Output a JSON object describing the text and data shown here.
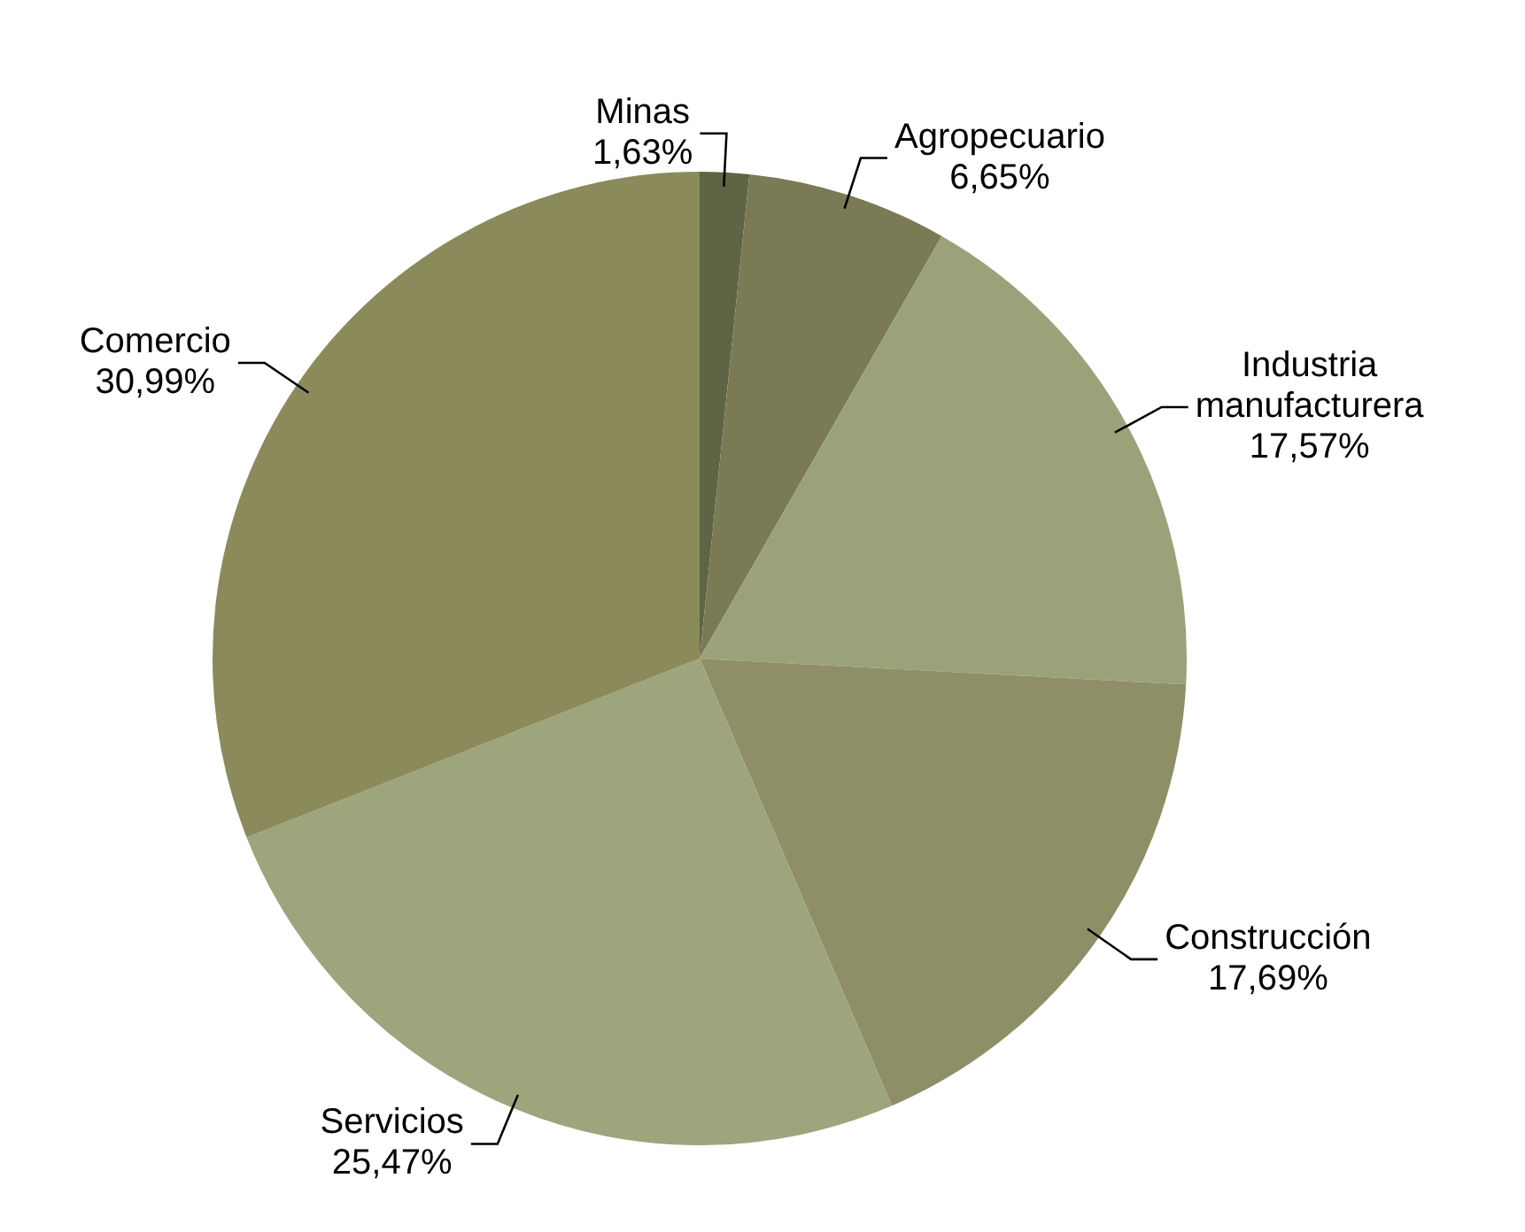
{
  "chart_data": {
    "type": "pie",
    "categories": [
      "Minas",
      "Agropecuario",
      "Industria manufacturera",
      "Construcción",
      "Servicios",
      "Comercio"
    ],
    "values": [
      1.63,
      6.65,
      17.57,
      17.69,
      25.47,
      30.99
    ],
    "value_labels": [
      "1,63%",
      "6,65%",
      "17,57%",
      "17,69%",
      "25,47%",
      "30,99%"
    ],
    "colors": [
      "#5e6444",
      "#7a7a55",
      "#9ba27a",
      "#8e8f67",
      "#9ea47c",
      "#8b8a5a"
    ],
    "legend": false
  }
}
